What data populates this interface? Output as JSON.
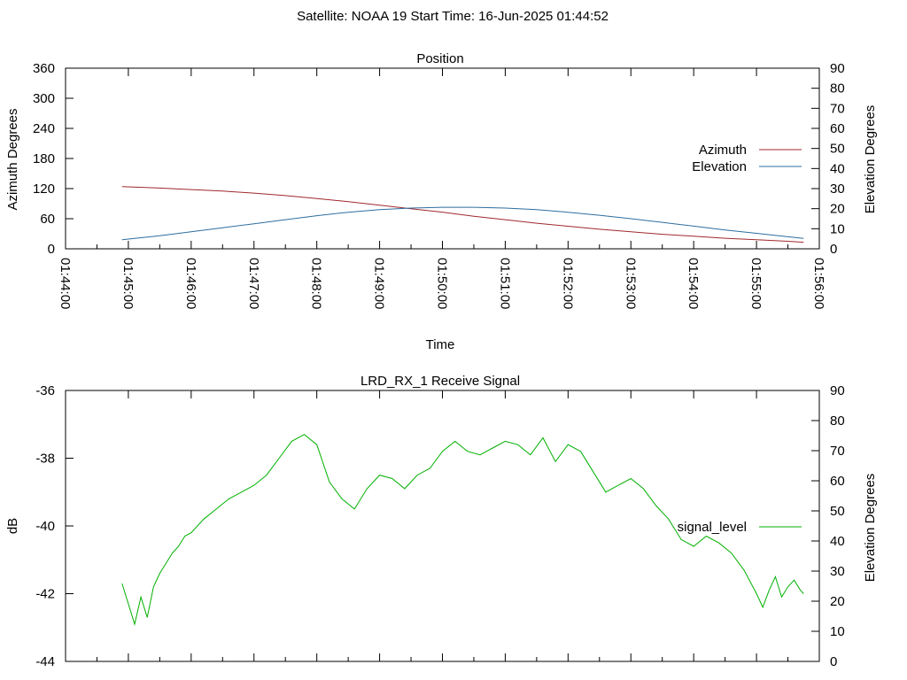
{
  "header": {
    "title": "Satellite: NOAA 19    Start Time: 16-Jun-2025 01:44:52"
  },
  "chart_data": [
    {
      "type": "line",
      "title": "Position",
      "xlabel": "Time",
      "ylabel": "Azimuth Degrees",
      "y2label": "Elevation Degrees",
      "xlim": [
        0,
        12
      ],
      "ylim": [
        0,
        360
      ],
      "y2lim": [
        0,
        90
      ],
      "grid": false,
      "legend_position": "right",
      "x_tick_labels": [
        "01:44:00",
        "01:45:00",
        "01:46:00",
        "01:47:00",
        "01:48:00",
        "01:49:00",
        "01:50:00",
        "01:51:00",
        "01:52:00",
        "01:53:00",
        "01:54:00",
        "01:55:00",
        "01:56:00"
      ],
      "y_ticks": [
        0,
        60,
        120,
        180,
        240,
        300,
        360
      ],
      "y2_ticks": [
        0,
        10,
        20,
        30,
        40,
        50,
        60,
        70,
        80,
        90
      ],
      "series": [
        {
          "name": "Azimuth",
          "axis": "y",
          "color": "#a0282d",
          "x": [
            0.9,
            1.5,
            2.0,
            2.5,
            3.0,
            3.5,
            4.0,
            4.5,
            5.0,
            5.5,
            6.0,
            6.5,
            7.0,
            7.5,
            8.0,
            8.5,
            9.0,
            9.5,
            10.0,
            10.5,
            11.0,
            11.5,
            11.75
          ],
          "values": [
            124,
            121,
            118,
            115,
            111,
            106,
            100,
            94,
            87,
            80,
            73,
            65,
            58,
            51,
            45,
            39,
            34,
            29,
            25,
            21,
            18,
            15,
            13
          ]
        },
        {
          "name": "Elevation",
          "axis": "y2",
          "color": "#2d6ea0",
          "x": [
            0.9,
            1.5,
            2.0,
            2.5,
            3.0,
            3.5,
            4.0,
            4.5,
            5.0,
            5.5,
            6.0,
            6.5,
            7.0,
            7.5,
            8.0,
            8.5,
            9.0,
            9.5,
            10.0,
            10.5,
            11.0,
            11.5,
            11.75
          ],
          "values": [
            4.5,
            6.5,
            8.5,
            10.5,
            12.5,
            14.5,
            16.5,
            18.2,
            19.5,
            20.3,
            20.7,
            20.7,
            20.3,
            19.5,
            18.2,
            16.7,
            15,
            13.2,
            11.3,
            9.4,
            7.7,
            6,
            5.2
          ]
        }
      ]
    },
    {
      "type": "line",
      "title": "LRD_RX_1 Receive Signal",
      "xlabel": "",
      "ylabel": "dB",
      "y2label": "Elevation Degrees",
      "xlim": [
        0,
        12
      ],
      "ylim": [
        -44,
        -36
      ],
      "y2lim": [
        0,
        90
      ],
      "grid": false,
      "legend_position": "right",
      "y_ticks": [
        -44,
        -42,
        -40,
        -38,
        -36
      ],
      "y2_ticks": [
        0,
        10,
        20,
        30,
        40,
        50,
        60,
        70,
        80,
        90
      ],
      "series": [
        {
          "name": "signal_level",
          "axis": "y",
          "color": "#00b000",
          "x": [
            0.9,
            1.0,
            1.1,
            1.2,
            1.3,
            1.4,
            1.5,
            1.6,
            1.7,
            1.8,
            1.9,
            2.0,
            2.2,
            2.4,
            2.6,
            2.8,
            3.0,
            3.2,
            3.4,
            3.6,
            3.8,
            4.0,
            4.2,
            4.4,
            4.6,
            4.8,
            5.0,
            5.2,
            5.4,
            5.6,
            5.8,
            6.0,
            6.2,
            6.4,
            6.6,
            6.8,
            7.0,
            7.2,
            7.4,
            7.6,
            7.8,
            8.0,
            8.2,
            8.4,
            8.6,
            8.8,
            9.0,
            9.2,
            9.4,
            9.6,
            9.8,
            10.0,
            10.2,
            10.4,
            10.6,
            10.8,
            11.0,
            11.1,
            11.2,
            11.3,
            11.4,
            11.5,
            11.6,
            11.7,
            11.75
          ],
          "values": [
            -41.7,
            -42.3,
            -42.9,
            -42.1,
            -42.7,
            -41.8,
            -41.4,
            -41.1,
            -40.8,
            -40.6,
            -40.3,
            -40.2,
            -39.8,
            -39.5,
            -39.2,
            -39.0,
            -38.8,
            -38.5,
            -38.0,
            -37.5,
            -37.3,
            -37.6,
            -38.7,
            -39.2,
            -39.5,
            -38.9,
            -38.5,
            -38.6,
            -38.9,
            -38.5,
            -38.3,
            -37.8,
            -37.5,
            -37.8,
            -37.9,
            -37.7,
            -37.5,
            -37.6,
            -37.9,
            -37.4,
            -38.1,
            -37.6,
            -37.8,
            -38.4,
            -39.0,
            -38.8,
            -38.6,
            -38.9,
            -39.4,
            -39.8,
            -40.4,
            -40.6,
            -40.3,
            -40.5,
            -40.8,
            -41.3,
            -42.0,
            -42.4,
            -41.9,
            -41.5,
            -42.1,
            -41.8,
            -41.6,
            -41.9,
            -42.0
          ]
        }
      ]
    }
  ]
}
